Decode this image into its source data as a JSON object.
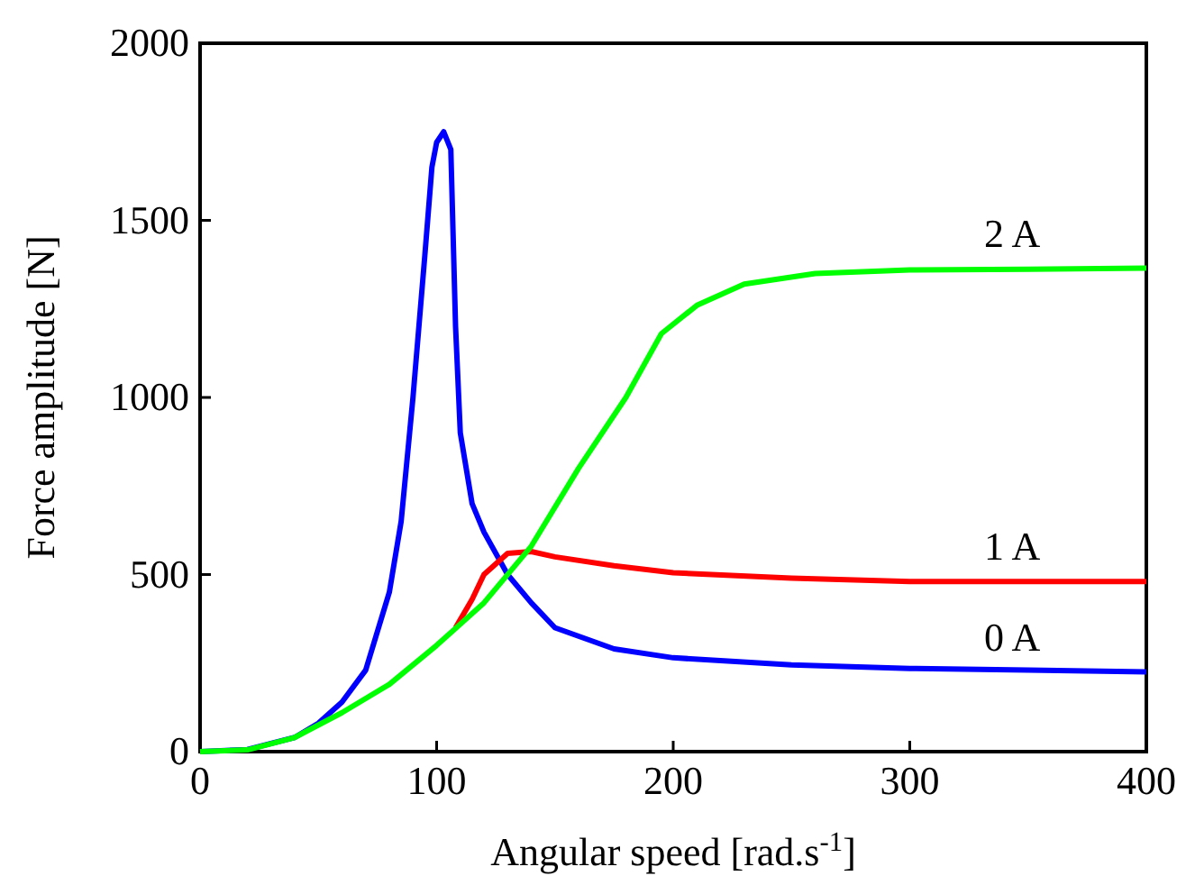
{
  "chart_data": {
    "type": "line",
    "xlabel": "Angular speed [rad.s$^{-1}$]",
    "ylabel": "Force amplitude [N]",
    "xlim": [
      0,
      400
    ],
    "ylim": [
      0,
      2000
    ],
    "xticks": [
      0,
      100,
      200,
      300,
      400
    ],
    "yticks": [
      0,
      500,
      1000,
      1500,
      2000
    ],
    "grid": false,
    "marker": "none",
    "line_style": "solid",
    "series": [
      {
        "name": "0 A",
        "color": "#0000ff",
        "x": [
          0,
          20,
          40,
          50,
          60,
          70,
          80,
          85,
          90,
          95,
          98,
          100,
          103,
          106,
          108,
          110,
          115,
          120,
          130,
          140,
          150,
          175,
          200,
          250,
          300,
          350,
          400
        ],
        "values": [
          0,
          6,
          40,
          80,
          140,
          230,
          450,
          650,
          1000,
          1400,
          1650,
          1720,
          1750,
          1700,
          1200,
          900,
          700,
          620,
          500,
          420,
          350,
          290,
          265,
          245,
          235,
          230,
          225
        ]
      },
      {
        "name": "1 A",
        "color": "#ff0000",
        "x": [
          108,
          115,
          120,
          130,
          140,
          150,
          175,
          200,
          250,
          300,
          350,
          400
        ],
        "values": [
          350,
          430,
          500,
          560,
          565,
          550,
          525,
          505,
          490,
          480,
          480,
          480
        ]
      },
      {
        "name": "2 A",
        "color": "#00ff00",
        "x": [
          0,
          20,
          40,
          60,
          80,
          100,
          120,
          140,
          160,
          180,
          195,
          210,
          230,
          260,
          300,
          350,
          400
        ],
        "values": [
          0,
          5,
          40,
          110,
          190,
          300,
          420,
          580,
          800,
          1000,
          1180,
          1260,
          1320,
          1350,
          1360,
          1362,
          1365
        ]
      }
    ]
  }
}
